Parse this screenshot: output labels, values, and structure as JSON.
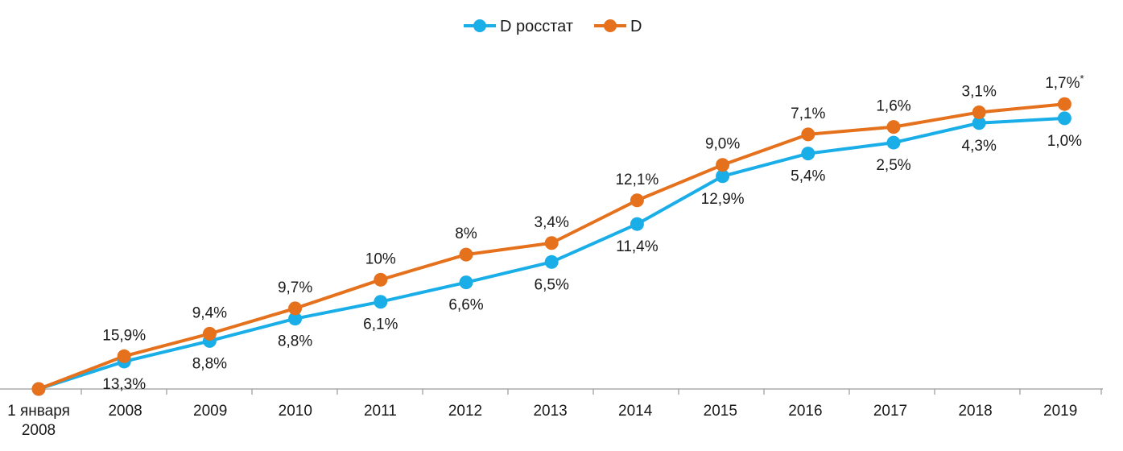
{
  "chart_data": {
    "type": "line",
    "title": "",
    "xlabel": "",
    "ylabel": "",
    "grid": false,
    "legend_position": "top-center",
    "categories": [
      "1 января 2008",
      "2008",
      "2009",
      "2010",
      "2011",
      "2012",
      "2013",
      "2014",
      "2015",
      "2016",
      "2017",
      "2018",
      "2019"
    ],
    "category_lines": [
      [
        "1 января",
        "2008"
      ],
      [
        "2008"
      ],
      [
        "2009"
      ],
      [
        "2010"
      ],
      [
        "2011"
      ],
      [
        "2012"
      ],
      [
        "2013"
      ],
      [
        "2014"
      ],
      [
        "2015"
      ],
      [
        "2016"
      ],
      [
        "2017"
      ],
      [
        "2018"
      ],
      [
        "2019"
      ]
    ],
    "value_note": "Values are cumulative index (1 January 2008 = 100) compounded from the annual growth-rate labels",
    "ylim": [
      100,
      245
    ],
    "series": [
      {
        "name": "D росстат",
        "color": "#1aaee8",
        "label_position": "below",
        "values": [
          100,
          113.3,
          123.3,
          134.1,
          142.3,
          151.7,
          161.6,
          180.0,
          203.2,
          214.2,
          219.5,
          229.0,
          231.3
        ],
        "labels": [
          "",
          "13,3%",
          "8,8%",
          "8,8%",
          "6,1%",
          "6,6%",
          "6,5%",
          "11,4%",
          "12,9%",
          "5,4%",
          "2,5%",
          "4,3%",
          "1,0%"
        ]
      },
      {
        "name": "D",
        "color": "#e5711c",
        "label_position": "above",
        "values": [
          100,
          115.9,
          126.8,
          139.1,
          153.0,
          165.2,
          170.8,
          191.5,
          208.7,
          223.5,
          227.1,
          234.2,
          238.2
        ],
        "labels": [
          "",
          "15,9%",
          "9,4%",
          "9,7%",
          "10%",
          "8%",
          "3,4%",
          "12,1%",
          "9,0%",
          "7,1%",
          "1,6%",
          "3,1%",
          "1,7%*"
        ]
      }
    ]
  }
}
